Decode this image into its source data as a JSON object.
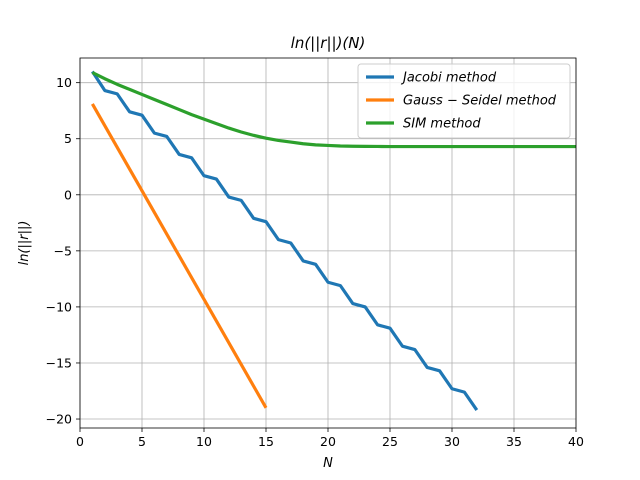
{
  "chart_data": {
    "type": "line",
    "title": "ln(||r||)(N)",
    "xlabel": "N",
    "ylabel": "ln(||r||)",
    "xlim": [
      0,
      40
    ],
    "ylim": [
      -20.8,
      12.2
    ],
    "xticks": [
      0,
      5,
      10,
      15,
      20,
      25,
      30,
      35,
      40
    ],
    "yticks": [
      10,
      5,
      0,
      -5,
      -10,
      -15,
      -20
    ],
    "grid": true,
    "legend_position": "top-right",
    "series": [
      {
        "name": "Jacobi method",
        "color": "#1f77b4",
        "x": [
          1,
          2,
          3,
          4,
          5,
          6,
          7,
          8,
          9,
          10,
          11,
          12,
          13,
          14,
          15,
          16,
          17,
          18,
          19,
          20,
          21,
          22,
          23,
          24,
          25,
          26,
          27,
          28,
          29,
          30,
          31,
          32
        ],
        "y": [
          11.0,
          9.3,
          9.0,
          7.4,
          7.1,
          5.5,
          5.2,
          3.6,
          3.3,
          1.7,
          1.4,
          -0.2,
          -0.5,
          -2.1,
          -2.4,
          -4.0,
          -4.3,
          -5.9,
          -6.2,
          -7.8,
          -8.1,
          -9.7,
          -10.0,
          -11.6,
          -11.9,
          -13.5,
          -13.8,
          -15.4,
          -15.7,
          -17.3,
          -17.6,
          -19.2
        ]
      },
      {
        "name": "Gauss − Seidel method",
        "color": "#ff7f0e",
        "x": [
          1,
          15
        ],
        "y": [
          8.1,
          -19.0
        ]
      },
      {
        "name": "SIM method",
        "color": "#2ca02c",
        "x": [
          1,
          2,
          3,
          4,
          5,
          6,
          7,
          8,
          9,
          10,
          11,
          12,
          13,
          14,
          15,
          16,
          17,
          18,
          19,
          20,
          21,
          22,
          23,
          24,
          25,
          26,
          27,
          28,
          29,
          30,
          31,
          32,
          33,
          34,
          35,
          36,
          37,
          38,
          39,
          40
        ],
        "y": [
          10.9,
          10.35,
          9.85,
          9.4,
          8.95,
          8.5,
          8.05,
          7.6,
          7.15,
          6.75,
          6.35,
          5.95,
          5.6,
          5.3,
          5.05,
          4.85,
          4.7,
          4.55,
          4.45,
          4.4,
          4.35,
          4.33,
          4.32,
          4.31,
          4.3,
          4.3,
          4.3,
          4.3,
          4.3,
          4.3,
          4.3,
          4.3,
          4.3,
          4.3,
          4.3,
          4.3,
          4.3,
          4.3,
          4.3,
          4.3
        ]
      }
    ]
  }
}
